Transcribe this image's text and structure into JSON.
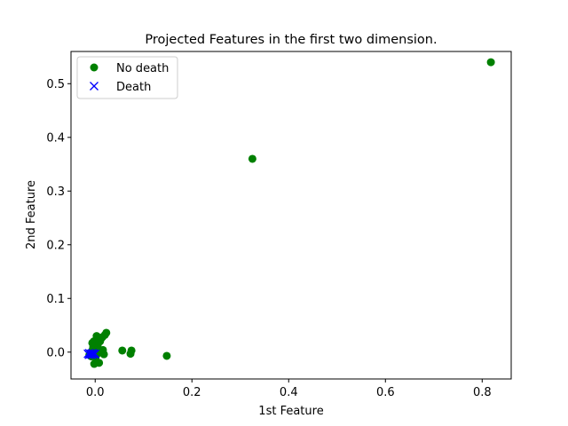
{
  "chart_data": {
    "type": "scatter",
    "title": "Projected Features in the first two dimension.",
    "xlabel": "1st Feature",
    "ylabel": "2nd Feature",
    "xlim": [
      -0.05,
      0.86
    ],
    "ylim": [
      -0.05,
      0.56
    ],
    "xticks": [
      0.0,
      0.2,
      0.4,
      0.6,
      0.8
    ],
    "yticks": [
      0.0,
      0.1,
      0.2,
      0.3,
      0.4,
      0.5
    ],
    "xtick_labels": [
      "0.0",
      "0.2",
      "0.4",
      "0.6",
      "0.8"
    ],
    "ytick_labels": [
      "0.0",
      "0.1",
      "0.2",
      "0.3",
      "0.4",
      "0.5"
    ],
    "grid": false,
    "legend_position": "top-left",
    "series": [
      {
        "name": "No death",
        "marker": "circle",
        "color": "#008000",
        "points": [
          [
            0.818,
            0.54
          ],
          [
            0.325,
            0.36
          ],
          [
            0.148,
            -0.007
          ],
          [
            0.075,
            0.003
          ],
          [
            0.073,
            -0.003
          ],
          [
            0.056,
            0.003
          ],
          [
            0.023,
            0.036
          ],
          [
            0.02,
            0.032
          ],
          [
            0.018,
            -0.004
          ],
          [
            0.015,
            0.028
          ],
          [
            0.012,
            0.025
          ],
          [
            0.01,
            0.02
          ],
          [
            0.008,
            -0.02
          ],
          [
            0.006,
            0.018
          ],
          [
            0.005,
            0.012
          ],
          [
            0.003,
            0.03
          ],
          [
            0.002,
            0.008
          ],
          [
            0.0,
            0.015
          ],
          [
            -0.002,
            -0.022
          ],
          [
            -0.003,
            0.02
          ],
          [
            -0.004,
            0.01
          ],
          [
            -0.005,
            0.005
          ],
          [
            -0.006,
            0.017
          ],
          [
            -0.008,
            -0.008
          ],
          [
            -0.01,
            -0.003
          ],
          [
            0.012,
            0.0
          ],
          [
            0.006,
            -0.002
          ],
          [
            0.001,
            -0.01
          ],
          [
            -0.012,
            -0.005
          ],
          [
            0.016,
            0.004
          ]
        ]
      },
      {
        "name": "Death",
        "marker": "x",
        "color": "#0000ff",
        "points": [
          [
            -0.015,
            -0.003
          ],
          [
            -0.012,
            -0.002
          ],
          [
            -0.01,
            -0.004
          ],
          [
            -0.008,
            -0.003
          ],
          [
            -0.006,
            -0.002
          ],
          [
            -0.004,
            -0.003
          ],
          [
            -0.002,
            -0.004
          ],
          [
            0.0,
            -0.003
          ],
          [
            -0.013,
            -0.005
          ],
          [
            -0.007,
            -0.005
          ]
        ]
      }
    ]
  }
}
